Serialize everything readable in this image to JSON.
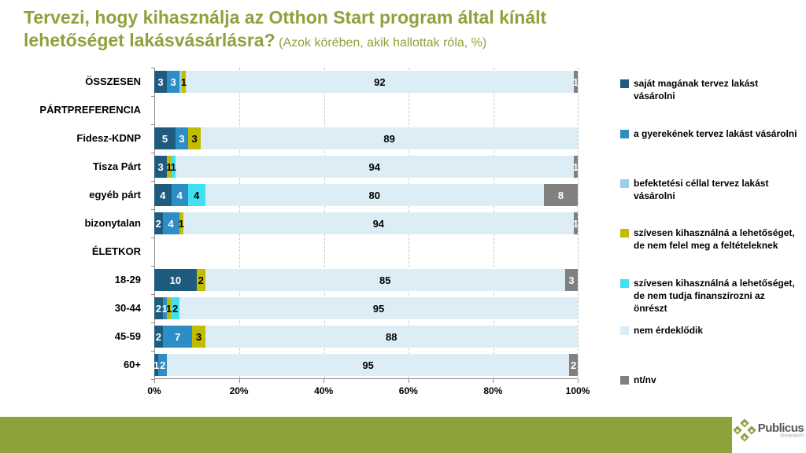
{
  "title": {
    "line1": "Tervezi, hogy kihasználja az Otthon Start program által kínált",
    "line2_bold": "lehetőséget lakásvásárlásra?",
    "subtitle": "(Azok körében, akik hallottak róla, %)"
  },
  "chart_data": {
    "type": "bar",
    "orientation": "horizontal-stacked",
    "title": "Tervezi, hogy kihasználja az Otthon Start program által kínált lehetőséget lakásvásárlásra?",
    "subtitle": "(Azok körében, akik hallottak róla, %)",
    "x_axis": {
      "ticks": [
        "0%",
        "20%",
        "40%",
        "60%",
        "80%",
        "100%"
      ],
      "range": [
        0,
        100
      ],
      "gridlines": "dashed"
    },
    "series": [
      {
        "id": "sajat",
        "name": "saját magának tervez lakást vásárolni",
        "color": "#1E5B7E",
        "text_color": "#FFFFFF"
      },
      {
        "id": "gyerek",
        "name": "a gyerekének tervez lakást vásárolni",
        "color": "#2D8EC5",
        "text_color": "#FFFFFF"
      },
      {
        "id": "befektetesi",
        "name": "befektetési céllal tervez lakást vásárolni",
        "color": "#9CCEEC",
        "text_color": "#000000"
      },
      {
        "id": "feltetel",
        "name": "szívesen kihasználná a lehetőséget, de nem felel meg a feltételeknek",
        "color": "#C2BC00",
        "text_color": "#000000"
      },
      {
        "id": "onresz",
        "name": "szívesen kihasználná a lehetőséget, de nem tudja finanszírozni az önrészt",
        "color": "#3FE1F0",
        "text_color": "#000000"
      },
      {
        "id": "nem_erdeklodik",
        "name": "nem érdeklődik",
        "color": "#DCEDF6",
        "text_color": "#000000"
      },
      {
        "id": "ntnv",
        "name": "nt/nv",
        "color": "#808080",
        "text_color": "#FFFFFF"
      }
    ],
    "rows": [
      {
        "label": "ÖSSZESEN",
        "header": false,
        "segments": [
          {
            "series": "sajat",
            "value": 3,
            "label": "3"
          },
          {
            "series": "gyerek",
            "value": 3,
            "label": "3"
          },
          {
            "series": "befektetesi",
            "value": 0.5,
            "label": ""
          },
          {
            "series": "feltetel",
            "value": 1,
            "label": "1"
          },
          {
            "series": "nem_erdeklodik",
            "value": 92,
            "label": "92"
          },
          {
            "series": "ntnv",
            "value": 1,
            "label": "1"
          }
        ]
      },
      {
        "label": "PÁRTPREFERENCIA",
        "header": true,
        "segments": []
      },
      {
        "label": "Fidesz-KDNP",
        "header": false,
        "segments": [
          {
            "series": "sajat",
            "value": 5,
            "label": "5"
          },
          {
            "series": "gyerek",
            "value": 3,
            "label": "3"
          },
          {
            "series": "feltetel",
            "value": 3,
            "label": "3"
          },
          {
            "series": "nem_erdeklodik",
            "value": 89,
            "label": "89"
          }
        ]
      },
      {
        "label": "Tisza Párt",
        "header": false,
        "segments": [
          {
            "series": "sajat",
            "value": 3,
            "label": "3"
          },
          {
            "series": "feltetel",
            "value": 1,
            "label": "1"
          },
          {
            "series": "onresz",
            "value": 1,
            "label": "1"
          },
          {
            "series": "nem_erdeklodik",
            "value": 94,
            "label": "94"
          },
          {
            "series": "ntnv",
            "value": 1,
            "label": "1"
          }
        ]
      },
      {
        "label": "egyéb párt",
        "header": false,
        "segments": [
          {
            "series": "sajat",
            "value": 4,
            "label": "4"
          },
          {
            "series": "gyerek",
            "value": 4,
            "label": "4"
          },
          {
            "series": "onresz",
            "value": 4,
            "label": "4"
          },
          {
            "series": "nem_erdeklodik",
            "value": 80,
            "label": "80"
          },
          {
            "series": "ntnv",
            "value": 8,
            "label": "8"
          }
        ]
      },
      {
        "label": "bizonytalan",
        "header": false,
        "segments": [
          {
            "series": "sajat",
            "value": 2,
            "label": "2"
          },
          {
            "series": "gyerek",
            "value": 4,
            "label": "4"
          },
          {
            "series": "feltetel",
            "value": 1,
            "label": "1"
          },
          {
            "series": "nem_erdeklodik",
            "value": 94,
            "label": "94"
          },
          {
            "series": "ntnv",
            "value": 1,
            "label": "1"
          }
        ]
      },
      {
        "label": "ÉLETKOR",
        "header": true,
        "segments": []
      },
      {
        "label": "18-29",
        "header": false,
        "segments": [
          {
            "series": "sajat",
            "value": 10,
            "label": "10"
          },
          {
            "series": "feltetel",
            "value": 2,
            "label": "2"
          },
          {
            "series": "nem_erdeklodik",
            "value": 85,
            "label": "85"
          },
          {
            "series": "ntnv",
            "value": 3,
            "label": "3"
          }
        ]
      },
      {
        "label": "30-44",
        "header": false,
        "segments": [
          {
            "series": "sajat",
            "value": 2,
            "label": "2"
          },
          {
            "series": "gyerek",
            "value": 1,
            "label": "1"
          },
          {
            "series": "feltetel",
            "value": 1,
            "label": "1"
          },
          {
            "series": "onresz",
            "value": 2,
            "label": "2"
          },
          {
            "series": "nem_erdeklodik",
            "value": 95,
            "label": "95"
          }
        ]
      },
      {
        "label": "45-59",
        "header": false,
        "segments": [
          {
            "series": "sajat",
            "value": 2,
            "label": "2"
          },
          {
            "series": "gyerek",
            "value": 7,
            "label": "7"
          },
          {
            "series": "feltetel",
            "value": 3,
            "label": "3"
          },
          {
            "series": "nem_erdeklodik",
            "value": 88,
            "label": "88"
          }
        ]
      },
      {
        "label": "60+",
        "header": false,
        "segments": [
          {
            "series": "sajat",
            "value": 1,
            "label": "1"
          },
          {
            "series": "gyerek",
            "value": 2,
            "label": "2"
          },
          {
            "series": "nem_erdeklodik",
            "value": 95,
            "label": "95"
          },
          {
            "series": "ntnv",
            "value": 2,
            "label": "2"
          }
        ]
      }
    ],
    "legend_position": "right"
  },
  "colors": {
    "title_green": "#8EA23B",
    "footer_green": "#8EA23B",
    "axis_gray": "#8C8C8C"
  },
  "footer": {
    "brand": "Publicus",
    "brand_sub": "Research"
  }
}
